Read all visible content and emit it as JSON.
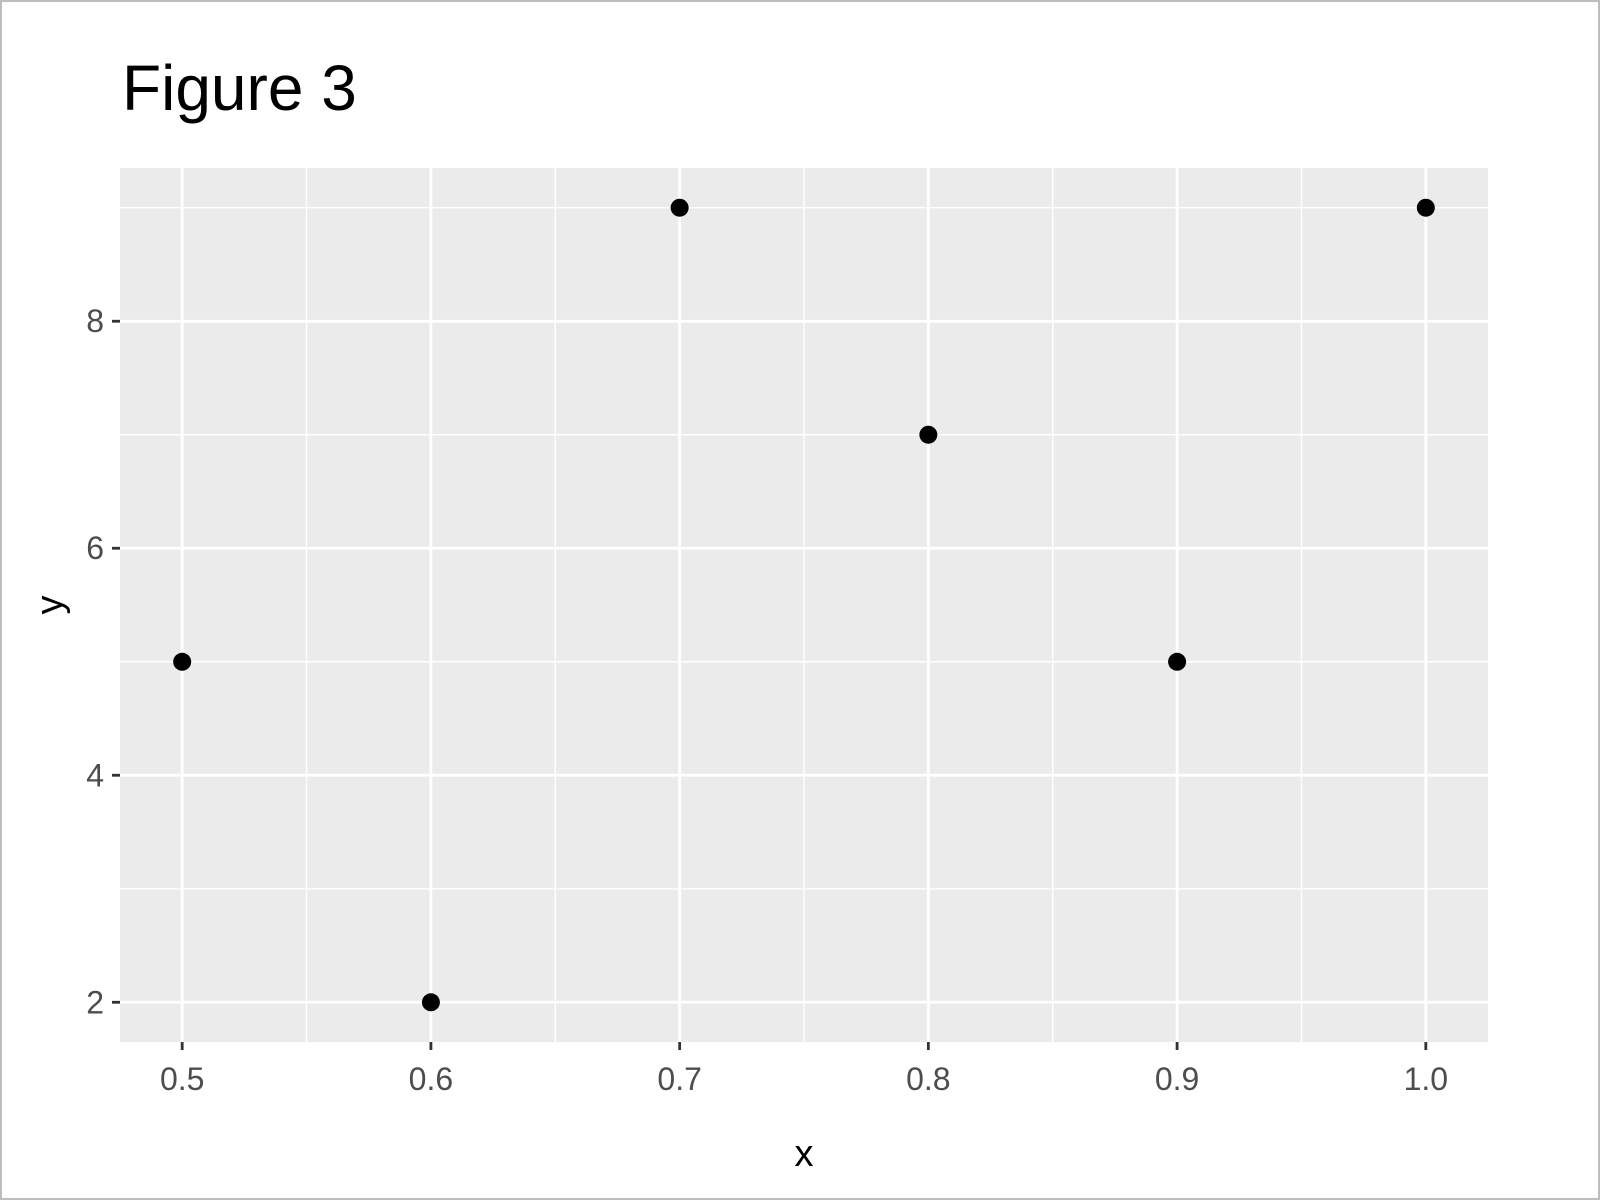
{
  "chart_data": {
    "type": "scatter",
    "title": "Figure 3",
    "xlabel": "x",
    "ylabel": "y",
    "x": [
      0.5,
      0.6,
      0.7,
      0.8,
      0.9,
      1.0
    ],
    "y": [
      5,
      2,
      9,
      7,
      5,
      9
    ],
    "xlim": [
      0.475,
      1.025
    ],
    "ylim": [
      1.65,
      9.35
    ],
    "x_major_ticks": [
      0.5,
      0.6,
      0.7,
      0.8,
      0.9,
      1.0
    ],
    "x_tick_labels": [
      "0.5",
      "0.6",
      "0.7",
      "0.8",
      "0.9",
      "1.0"
    ],
    "x_minor_ticks": [
      0.55,
      0.65,
      0.75,
      0.85,
      0.95
    ],
    "y_major_ticks": [
      2,
      4,
      6,
      8
    ],
    "y_tick_labels": [
      "2",
      "4",
      "6",
      "8"
    ],
    "y_minor_ticks": [
      3,
      5,
      7,
      9
    ],
    "grid": true,
    "legend": "none",
    "colors": {
      "panel_background": "#ebebeb",
      "grid": "#ffffff",
      "point": "#000000",
      "tick_label": "#4d4d4d",
      "tick_mark": "#333333"
    }
  }
}
